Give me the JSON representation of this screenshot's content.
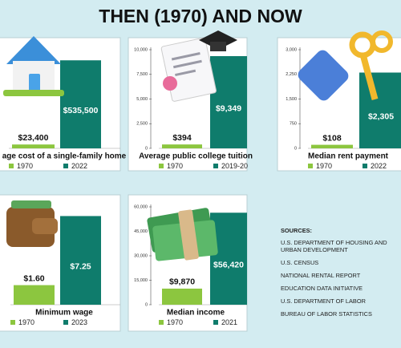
{
  "title": "THEN (1970) AND NOW",
  "chart_data": [
    {
      "type": "bar",
      "title": "age cost of a single-family home",
      "categories": [
        "1970",
        "2022"
      ],
      "values": [
        23400,
        535500
      ],
      "value_labels": [
        "$23,400",
        "$535,500"
      ],
      "colors": [
        "#8cc63f",
        "#0f7c6c"
      ],
      "ylim": [
        0,
        600000
      ]
    },
    {
      "type": "bar",
      "title": "Average public college tuition",
      "categories": [
        "1970",
        "2019-20"
      ],
      "values": [
        394,
        9349
      ],
      "value_labels": [
        "$394",
        "$9,349"
      ],
      "colors": [
        "#8cc63f",
        "#0f7c6c"
      ],
      "ylim": [
        0,
        10000
      ],
      "yticks": [
        0,
        {
          "value": 2500,
          "label": "2,500"
        },
        {
          "value": 5000,
          "label": "5,000"
        },
        {
          "value": 7500,
          "label": "7,500"
        },
        {
          "value": 10000,
          "label": "10,000"
        }
      ]
    },
    {
      "type": "bar",
      "title": "Median rent payment",
      "categories": [
        "1970",
        "2022"
      ],
      "values": [
        108,
        2305
      ],
      "value_labels": [
        "$108",
        "$2,305"
      ],
      "colors": [
        "#8cc63f",
        "#0f7c6c"
      ],
      "ylim": [
        0,
        3000
      ],
      "yticks": [
        0,
        750,
        {
          "value": 1500,
          "label": "1,500"
        },
        {
          "value": 2250,
          "label": "2,250"
        },
        {
          "value": 3000,
          "label": "3,000"
        }
      ]
    },
    {
      "type": "bar",
      "title": "Minimum wage",
      "categories": [
        "1970",
        "2023"
      ],
      "values": [
        1.6,
        7.25
      ],
      "value_labels": [
        "$1.60",
        "$7.25"
      ],
      "colors": [
        "#8cc63f",
        "#0f7c6c"
      ],
      "ylim": [
        0,
        8
      ]
    },
    {
      "type": "bar",
      "title": "Median income",
      "categories": [
        "1970",
        "2021"
      ],
      "values": [
        9870,
        56420
      ],
      "value_labels": [
        "$9,870",
        "$56,420"
      ],
      "colors": [
        "#8cc63f",
        "#0f7c6c"
      ],
      "ylim": [
        0,
        60000
      ],
      "yticks": [
        0,
        {
          "value": 15000,
          "label": "15,000"
        },
        {
          "value": 30000,
          "label": "30,000"
        },
        {
          "value": 45000,
          "label": "45,000"
        },
        {
          "value": 60000,
          "label": "60,000"
        }
      ]
    }
  ],
  "sources": {
    "heading": "SOURCES:",
    "items": [
      "U.S. DEPARTMENT OF HOUSING AND URBAN DEVELOPMENT",
      "U.S. CENSUS",
      "NATIONAL RENTAL REPORT",
      "EDUCATION DATA INITIATIVE",
      "U.S. DEPARTMENT OF LABOR",
      "BUREAU OF LABOR STATISTICS"
    ]
  }
}
